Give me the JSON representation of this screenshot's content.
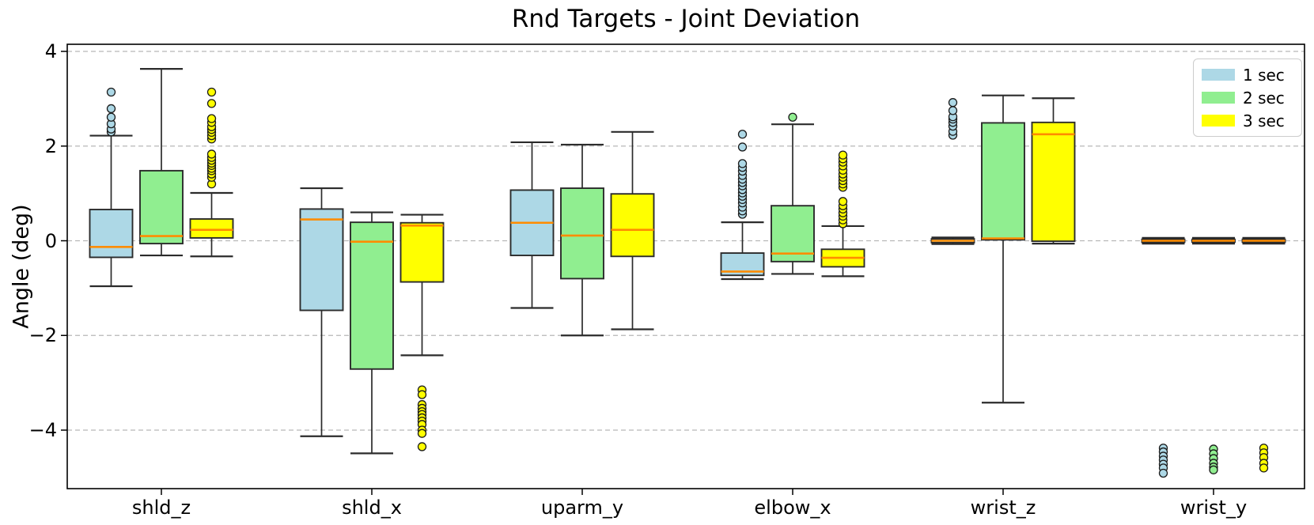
{
  "chart_data": {
    "type": "boxplot",
    "title": "Rnd Targets - Joint Deviation",
    "xlabel": "",
    "ylabel": "Angle (deg)",
    "categories": [
      "shld_z",
      "shld_x",
      "uparm_y",
      "elbow_x",
      "wrist_z",
      "wrist_y"
    ],
    "yticks": [
      4,
      2,
      0,
      -2,
      -4
    ],
    "ytick_labels": [
      "4",
      "2",
      "0",
      "−2",
      "−4"
    ],
    "ylim": [
      -5.24,
      4.16
    ],
    "grid": "horizontal dashed at yticks",
    "legend_position": "upper right",
    "style": {
      "median_color": "#FF8C00",
      "edge_color": "#2b2b2b",
      "whisker_color": "#2b2b2b",
      "grid_color": "#b8b8b8",
      "spine_color": "#000000",
      "flier_edge_color": "#1a1a1a"
    },
    "series": [
      {
        "name": "1 sec",
        "color": "#ADD8E6",
        "boxes": [
          {
            "whislo": -0.96,
            "q1": -0.35,
            "med": -0.13,
            "q3": 0.66,
            "whishi": 2.22,
            "fliers": [
              2.3,
              2.36,
              2.47,
              2.61,
              2.79,
              3.14
            ]
          },
          {
            "whislo": -4.13,
            "q1": -1.47,
            "med": 0.45,
            "q3": 0.67,
            "whishi": 1.11,
            "fliers": []
          },
          {
            "whislo": -1.42,
            "q1": -0.31,
            "med": 0.38,
            "q3": 1.07,
            "whishi": 2.08,
            "fliers": []
          },
          {
            "whislo": -0.81,
            "q1": -0.73,
            "med": -0.65,
            "q3": -0.26,
            "whishi": 0.39,
            "fliers": [
              0.56,
              0.63,
              0.71,
              0.8,
              0.87,
              0.94,
              1.01,
              1.08,
              1.16,
              1.23,
              1.3,
              1.38,
              1.47,
              1.55,
              1.63,
              1.98,
              2.25
            ]
          },
          {
            "whislo": -0.07,
            "q1": -0.04,
            "med": 0.0,
            "q3": 0.04,
            "whishi": 0.07,
            "fliers": [
              2.23,
              2.31,
              2.42,
              2.5,
              2.57,
              2.62,
              2.75,
              2.92
            ]
          },
          {
            "whislo": -0.06,
            "q1": -0.03,
            "med": 0.0,
            "q3": 0.03,
            "whishi": 0.06,
            "fliers": [
              -4.38,
              -4.46,
              -4.55,
              -4.63,
              -4.72,
              -4.8,
              -4.91
            ]
          }
        ]
      },
      {
        "name": "2 sec",
        "color": "#90EE90",
        "boxes": [
          {
            "whislo": -0.31,
            "q1": -0.06,
            "med": 0.1,
            "q3": 1.48,
            "whishi": 3.63,
            "fliers": []
          },
          {
            "whislo": -4.49,
            "q1": -2.71,
            "med": -0.02,
            "q3": 0.39,
            "whishi": 0.6,
            "fliers": []
          },
          {
            "whislo": -2.0,
            "q1": -0.8,
            "med": 0.11,
            "q3": 1.11,
            "whishi": 2.03,
            "fliers": []
          },
          {
            "whislo": -0.7,
            "q1": -0.44,
            "med": -0.27,
            "q3": 0.74,
            "whishi": 2.46,
            "fliers": [
              2.61
            ]
          },
          {
            "whislo": -3.42,
            "q1": 0.02,
            "med": 0.05,
            "q3": 2.49,
            "whishi": 3.07,
            "fliers": []
          },
          {
            "whislo": -0.06,
            "q1": -0.03,
            "med": 0.0,
            "q3": 0.03,
            "whishi": 0.06,
            "fliers": [
              -4.4,
              -4.5,
              -4.6,
              -4.7,
              -4.78,
              -4.84
            ]
          }
        ]
      },
      {
        "name": "3 sec",
        "color": "#FFFF00",
        "boxes": [
          {
            "whislo": -0.33,
            "q1": 0.06,
            "med": 0.23,
            "q3": 0.46,
            "whishi": 1.01,
            "fliers": [
              1.2,
              1.34,
              1.41,
              1.48,
              1.53,
              1.59,
              1.64,
              1.7,
              1.76,
              1.83,
              2.15,
              2.22,
              2.29,
              2.35,
              2.41,
              2.5,
              2.58,
              2.9,
              3.14
            ]
          },
          {
            "whislo": -2.42,
            "q1": -0.87,
            "med": 0.32,
            "q3": 0.38,
            "whishi": 0.55,
            "fliers": [
              -3.15,
              -3.25,
              -3.46,
              -3.54,
              -3.61,
              -3.67,
              -3.74,
              -3.81,
              -3.88,
              -4.0,
              -4.07,
              -4.35
            ]
          },
          {
            "whislo": -1.87,
            "q1": -0.33,
            "med": 0.23,
            "q3": 0.99,
            "whishi": 2.3,
            "fliers": []
          },
          {
            "whislo": -0.75,
            "q1": -0.55,
            "med": -0.36,
            "q3": -0.18,
            "whishi": 0.31,
            "fliers": [
              0.36,
              0.44,
              0.52,
              0.59,
              0.67,
              0.74,
              0.83,
              1.13,
              1.2,
              1.27,
              1.34,
              1.41,
              1.49,
              1.58,
              1.66,
              1.73,
              1.81
            ]
          },
          {
            "whislo": -0.06,
            "q1": -0.01,
            "med": 2.25,
            "q3": 2.5,
            "whishi": 3.01,
            "fliers": []
          },
          {
            "whislo": -0.06,
            "q1": -0.03,
            "med": 0.0,
            "q3": 0.03,
            "whishi": 0.06,
            "fliers": [
              -4.38,
              -4.48,
              -4.58,
              -4.7,
              -4.8
            ]
          }
        ]
      }
    ]
  }
}
